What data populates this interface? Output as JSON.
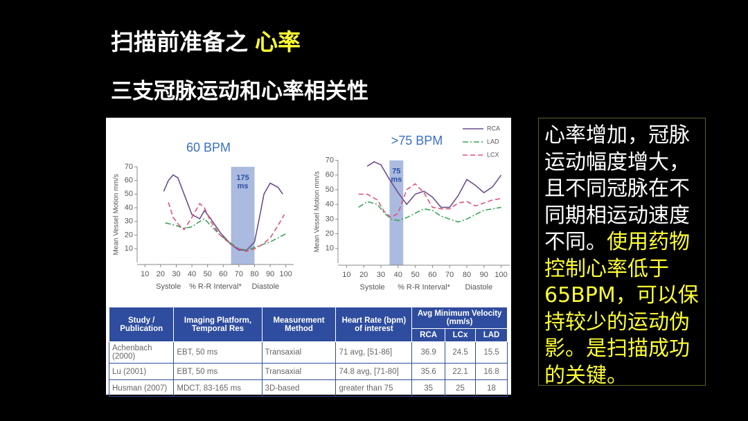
{
  "title": {
    "text": "扫描前准备之",
    "highlight": "心率"
  },
  "subtitle": "三支冠脉运动和心率相关性",
  "chart_data": [
    {
      "type": "line",
      "title": "60 BPM",
      "xlabel": "% R-R Interval*",
      "ylabel": "Mean Vessel Motion mm/s",
      "annotations": [
        "Systole",
        "Diastole"
      ],
      "band": {
        "from": 65,
        "to": 80,
        "label": [
          "175",
          "ms"
        ]
      },
      "xlim": [
        5,
        105
      ],
      "ylim": [
        0,
        75
      ],
      "xticks": [
        10,
        20,
        30,
        40,
        50,
        60,
        70,
        80,
        90,
        100
      ],
      "yticks": [
        10,
        20,
        30,
        40,
        50,
        60,
        70
      ],
      "series": [
        {
          "name": "RCA",
          "color": "#6b4f8e",
          "style": "solid",
          "x": [
            22,
            25,
            28,
            31,
            35,
            40,
            45,
            48,
            52,
            58,
            65,
            70,
            75,
            80,
            83,
            86,
            90,
            95,
            98
          ],
          "values": [
            52,
            60,
            64,
            62,
            50,
            35,
            32,
            38,
            32,
            22,
            13,
            9,
            9,
            15,
            32,
            50,
            58,
            55,
            50
          ]
        },
        {
          "name": "LAD",
          "color": "#3aa35a",
          "style": "dashdot",
          "x": [
            23,
            30,
            35,
            40,
            45,
            48,
            52,
            58,
            65,
            70,
            75,
            80,
            85,
            90,
            95,
            100
          ],
          "values": [
            29,
            27,
            25,
            26,
            30,
            32,
            27,
            20,
            14,
            10,
            9,
            11,
            13,
            15,
            18,
            21
          ]
        },
        {
          "name": "LCX",
          "color": "#e0517a",
          "style": "dashed",
          "x": [
            25,
            28,
            32,
            35,
            40,
            45,
            48,
            52,
            58,
            65,
            70,
            75,
            80,
            85,
            90,
            95,
            99
          ],
          "values": [
            44,
            33,
            27,
            24,
            33,
            43,
            40,
            30,
            20,
            13,
            10,
            8,
            10,
            13,
            18,
            27,
            35
          ]
        }
      ]
    },
    {
      "type": "line",
      "title": ">75 BPM",
      "xlabel": "% R-R Interval*",
      "ylabel": "Mean Vessel Motion mm/s",
      "annotations": [
        "Systole",
        "Diastole"
      ],
      "legend": "upper right",
      "band": {
        "from": 35,
        "to": 43,
        "label": [
          "75",
          "ms"
        ]
      },
      "xlim": [
        5,
        105
      ],
      "ylim": [
        0,
        75
      ],
      "xticks": [
        10,
        20,
        30,
        40,
        50,
        60,
        70,
        80,
        90,
        100
      ],
      "yticks": [
        10,
        20,
        30,
        40,
        50,
        60,
        70
      ],
      "series": [
        {
          "name": "RCA",
          "color": "#6b4f8e",
          "style": "solid",
          "x": [
            22,
            26,
            30,
            35,
            40,
            45,
            50,
            55,
            60,
            65,
            70,
            75,
            80,
            85,
            90,
            95,
            100
          ],
          "values": [
            66,
            69,
            67,
            57,
            48,
            40,
            47,
            49,
            45,
            38,
            38,
            46,
            57,
            53,
            48,
            52,
            60
          ]
        },
        {
          "name": "LAD",
          "color": "#3aa35a",
          "style": "dashdot",
          "x": [
            17,
            22,
            28,
            32,
            36,
            40,
            45,
            50,
            55,
            60,
            65,
            70,
            75,
            80,
            85,
            90,
            95,
            100
          ],
          "values": [
            38,
            42,
            40,
            34,
            30,
            29,
            31,
            34,
            37,
            36,
            32,
            30,
            28,
            30,
            33,
            36,
            37,
            38
          ]
        },
        {
          "name": "LCX",
          "color": "#e0517a",
          "style": "dashed",
          "x": [
            17,
            22,
            28,
            32,
            36,
            40,
            45,
            50,
            55,
            60,
            65,
            70,
            75,
            80,
            85,
            90,
            95,
            100
          ],
          "values": [
            47,
            47,
            43,
            35,
            31,
            34,
            50,
            54,
            48,
            38,
            37,
            37,
            41,
            42,
            39,
            41,
            43,
            44
          ]
        }
      ]
    }
  ],
  "table": {
    "headers": [
      "Study / Publication",
      "Imaging Platform, Temporal Res",
      "Measurement Method",
      "Heart Rate (bpm) of interest",
      "Avg Minimum Velocity (mm/s)"
    ],
    "subheaders": [
      "RCA",
      "LCx",
      "LAD"
    ],
    "rows": [
      [
        "Achenbach (2000)",
        "EBT, 50 ms",
        "Transaxial",
        "71 avg, [51-86]",
        "36.9",
        "24.5",
        "15.5"
      ],
      [
        "Lu (2001)",
        "EBT, 50 ms",
        "Transaxial",
        "74.8 avg, [71-80]",
        "35.6",
        "22.1",
        "16.8"
      ],
      [
        "Husman (2007)",
        "MDCT, 83-165 ms",
        "3D-based",
        "greater than 75",
        "35",
        "25",
        "18"
      ]
    ]
  },
  "note": {
    "text": "心率增加，冠脉运动幅度增大，且不同冠脉在不同期相运动速度不同。",
    "highlight": "使用药物控制心率低于65BPM，可以保持较少的运动伪影。是扫描成功的关键。"
  }
}
